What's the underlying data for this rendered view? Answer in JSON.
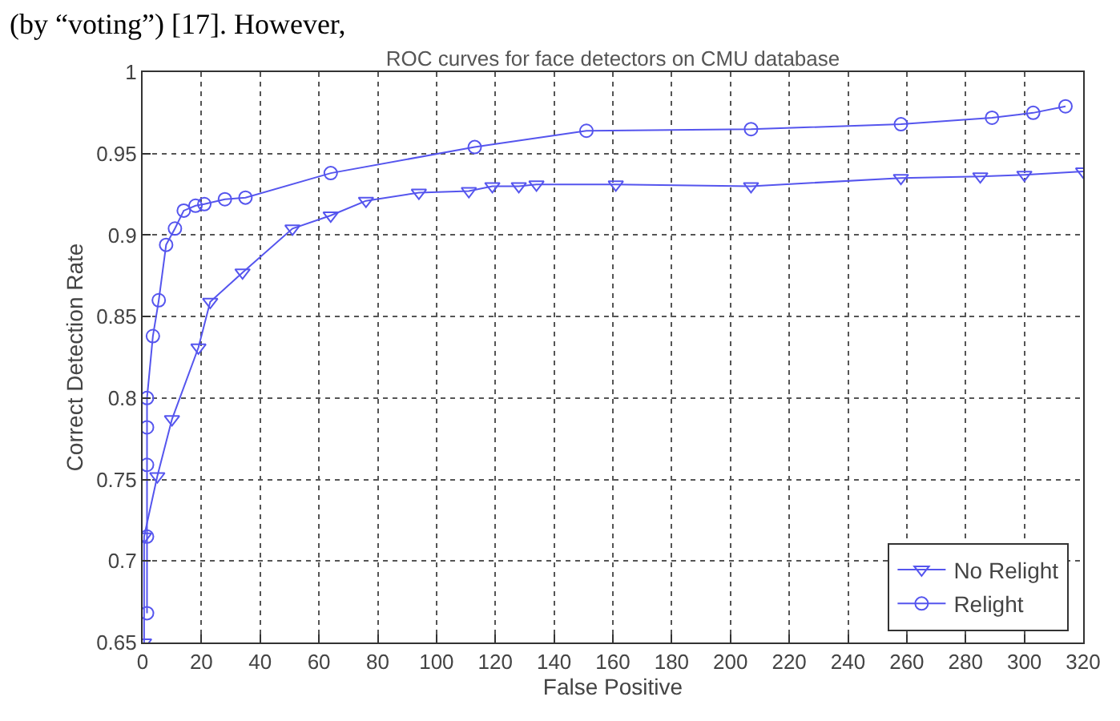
{
  "chart_data": {
    "type": "line",
    "title": "ROC curves for face detectors on CMU database",
    "xlabel": "False Positive",
    "ylabel": "Correct Detection Rate",
    "annotations": [
      "(by “voting”) [17]. However,"
    ],
    "xlim": [
      0,
      320
    ],
    "xticks": [
      0,
      20,
      40,
      60,
      80,
      100,
      120,
      140,
      160,
      180,
      200,
      220,
      240,
      260,
      280,
      300,
      320
    ],
    "ylim": [
      0.65,
      1
    ],
    "yticks": [
      0.65,
      0.7,
      0.75,
      0.8,
      0.85,
      0.9,
      0.95,
      1
    ],
    "grid": true,
    "legend": "bottom right",
    "line_style": "solid",
    "series": [
      {
        "name": "No Relight",
        "color": "#5555ee",
        "marker": "triangle",
        "x": [
          0.5,
          0.5,
          5,
          10,
          19,
          23,
          34,
          51,
          64,
          76,
          94,
          111,
          119,
          128,
          134,
          161,
          207,
          258,
          285,
          300,
          320
        ],
        "values": [
          0.65,
          0.715,
          0.752,
          0.787,
          0.831,
          0.859,
          0.877,
          0.904,
          0.912,
          0.921,
          0.926,
          0.927,
          0.93,
          0.93,
          0.931,
          0.931,
          0.93,
          0.935,
          0.936,
          0.937,
          0.939
        ]
      },
      {
        "name": "Relight",
        "color": "#5555ee",
        "marker": "circle",
        "x": [
          1.5,
          1.5,
          1.5,
          1.5,
          1.5,
          3.5,
          5.5,
          8,
          11,
          14,
          18,
          21,
          28,
          35,
          64,
          113,
          151,
          207,
          258,
          289,
          303,
          314
        ],
        "values": [
          0.668,
          0.715,
          0.759,
          0.782,
          0.8,
          0.838,
          0.86,
          0.894,
          0.904,
          0.915,
          0.918,
          0.919,
          0.922,
          0.923,
          0.938,
          0.954,
          0.964,
          0.965,
          0.968,
          0.972,
          0.975,
          0.979
        ]
      }
    ]
  }
}
